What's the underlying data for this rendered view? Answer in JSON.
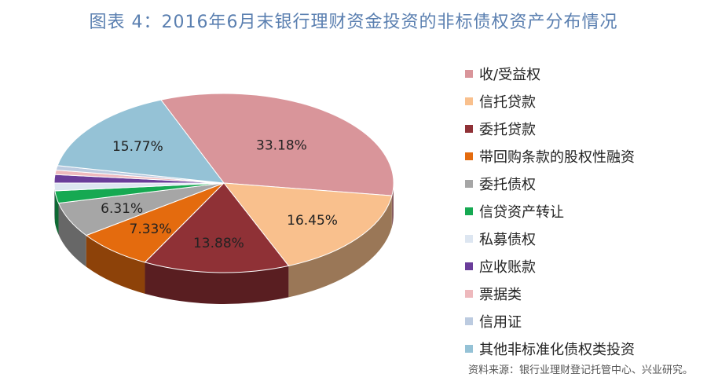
{
  "title": "图表 4：2016年6月末银行理财资金投资的非标债权资产分布情况",
  "source": "资料来源：银行业理财登记托管中心、兴业研究。",
  "chart_data": {
    "type": "pie",
    "style": "3d",
    "start_category": "收/受益权",
    "direction": "clockwise",
    "legend_position": "right",
    "slices": [
      {
        "name": "收/受益权",
        "value": 33.18,
        "label": "33.18%",
        "color": "#d9959a"
      },
      {
        "name": "信托贷款",
        "value": 16.45,
        "label": "16.45%",
        "color": "#f9c08d"
      },
      {
        "name": "委托贷款",
        "value": 13.88,
        "label": "13.88%",
        "color": "#8f3136"
      },
      {
        "name": "带回购条款的股权性融资",
        "value": 7.33,
        "label": "7.33%",
        "color": "#e46b0e"
      },
      {
        "name": "委托债权",
        "value": 6.31,
        "label": "6.31%",
        "color": "#a6a6a6"
      },
      {
        "name": "信贷资产转让",
        "value": 2.2,
        "label": "",
        "color": "#16a952"
      },
      {
        "name": "私募债权",
        "value": 1.4,
        "label": "",
        "color": "#dde6f1"
      },
      {
        "name": "应收账款",
        "value": 1.5,
        "label": "",
        "color": "#6a3d9a"
      },
      {
        "name": "票据类",
        "value": 0.8,
        "label": "",
        "color": "#eeb9bd"
      },
      {
        "name": "信用证",
        "value": 0.8,
        "label": "",
        "color": "#bccbe0"
      },
      {
        "name": "其他非标准化债权类投资",
        "value": 15.77,
        "label": "15.77%",
        "color": "#95c2d6"
      }
    ]
  }
}
